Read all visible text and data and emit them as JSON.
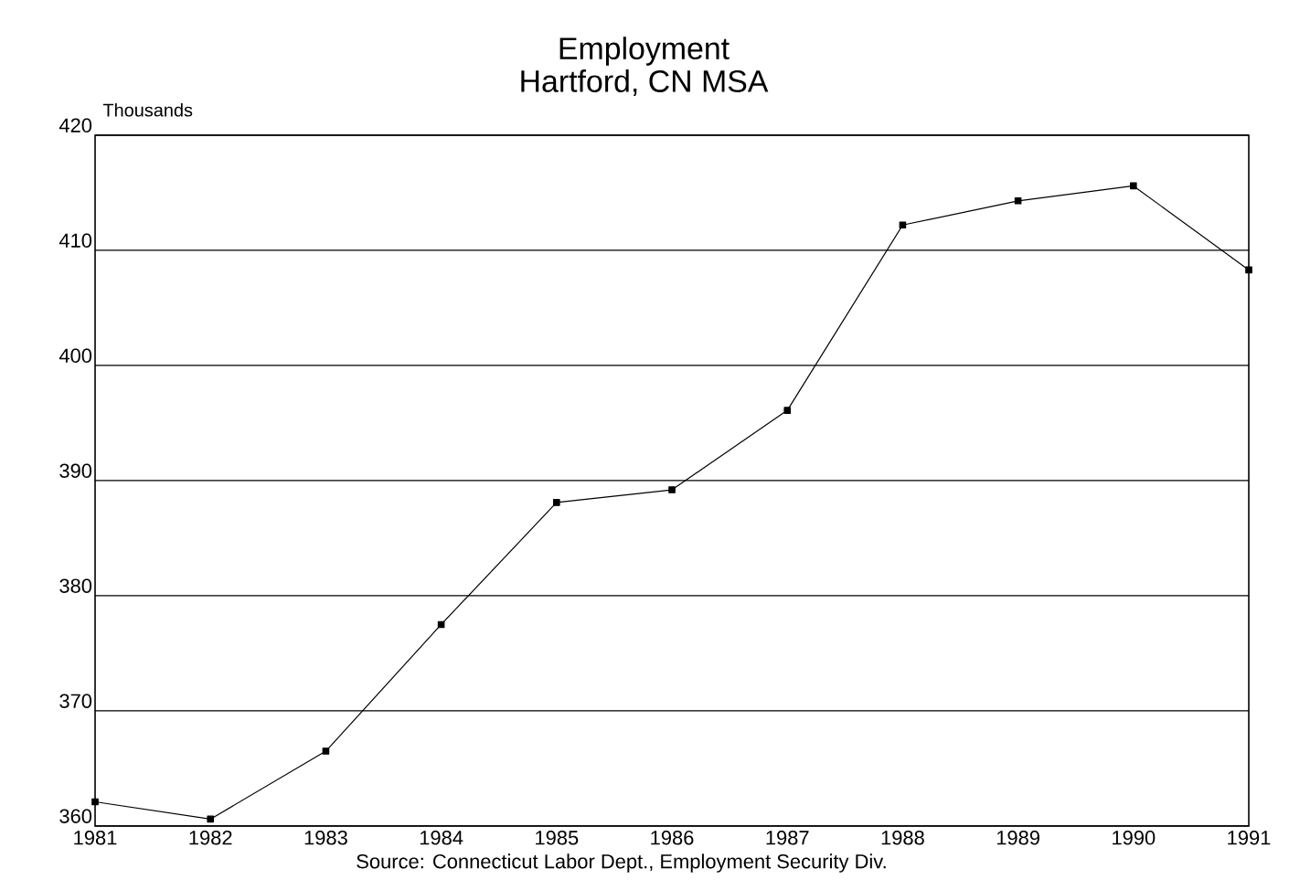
{
  "chart_data": {
    "type": "line",
    "title": "Employment",
    "subtitle": "Hartford, CN MSA",
    "ylabel": "Thousands",
    "x": [
      1981,
      1982,
      1983,
      1984,
      1985,
      1986,
      1987,
      1988,
      1989,
      1990,
      1991
    ],
    "series": [
      {
        "color": "#000000",
        "values": [
          362.1,
          360.6,
          366.5,
          377.5,
          388.1,
          389.2,
          396.1,
          412.2,
          414.3,
          415.6,
          408.3
        ]
      }
    ],
    "xlim": [
      1981,
      1991
    ],
    "xticks": [
      1981,
      1982,
      1983,
      1984,
      1985,
      1986,
      1987,
      1988,
      1989,
      1990,
      1991
    ],
    "ylim": [
      360,
      420
    ],
    "yticks": [
      360,
      370,
      380,
      390,
      400,
      410,
      420
    ],
    "grid": "y",
    "marker": "square",
    "line_style": "solid",
    "annotations": [
      "Source: Connecticut Labor Dept., Employment Security Div."
    ]
  }
}
